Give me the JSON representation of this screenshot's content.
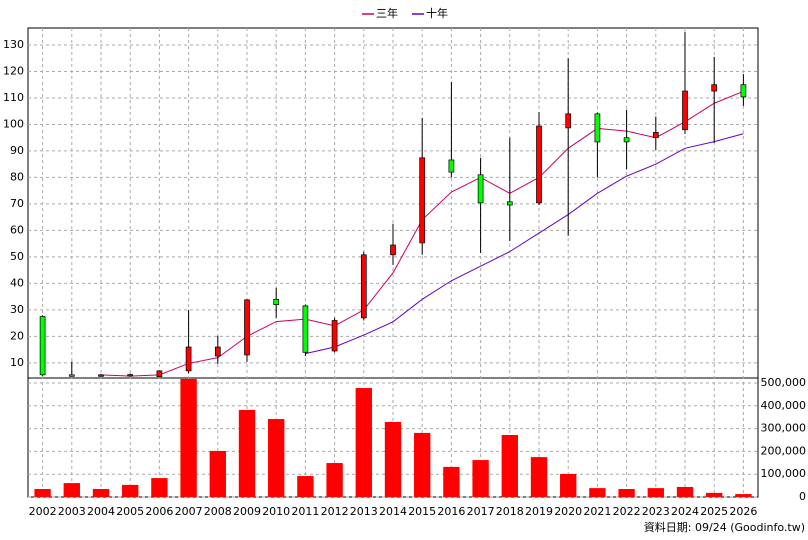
{
  "chart_data": {
    "type": "candlestick",
    "categories": [
      "2002",
      "2003",
      "2004",
      "2005",
      "2006",
      "2007",
      "2008",
      "2009",
      "2010",
      "2011",
      "2012",
      "2013",
      "2014",
      "2015",
      "2016",
      "2017",
      "2018",
      "2019",
      "2020",
      "2021",
      "2022",
      "2023",
      "2024",
      "2025",
      "2026"
    ],
    "open": [
      27.5,
      5.5,
      5,
      5.3,
      4.8,
      7,
      12.6,
      13,
      34,
      31.5,
      14.5,
      27,
      50.8,
      55.3,
      86.6,
      81,
      70.8,
      70.4,
      98.7,
      104,
      95,
      95,
      98,
      112.6,
      115
    ],
    "high": [
      28,
      10.5,
      5.8,
      6,
      7.2,
      30,
      20.2,
      34,
      38.3,
      32,
      27,
      52,
      62.5,
      102.5,
      116,
      87.4,
      95,
      104.7,
      125,
      104.5,
      105.5,
      103,
      135,
      125.5,
      119
    ],
    "low": [
      5,
      5,
      4.8,
      4.8,
      4.6,
      6,
      9.6,
      10.4,
      27,
      12.6,
      14,
      26,
      47,
      50.8,
      80,
      51.5,
      56,
      69.6,
      58,
      80,
      83,
      90.4,
      96.4,
      93,
      107
    ],
    "close": [
      5.5,
      5.2,
      5.5,
      5.6,
      7,
      16,
      16,
      33.8,
      32,
      14,
      26,
      50.8,
      54.5,
      87.4,
      82,
      70.4,
      69.6,
      99.4,
      104,
      93.4,
      93.4,
      97,
      112.6,
      115,
      110.4
    ],
    "up_color": "#ff0000",
    "down_color": "#00ff00",
    "ylim": [
      4.3,
      136.4
    ],
    "yticks": [
      10,
      20,
      30,
      40,
      50,
      60,
      70,
      80,
      90,
      100,
      110,
      120,
      130
    ],
    "grid": true,
    "legend": "top",
    "series": [
      {
        "name": "三年",
        "color": "#cc0066",
        "values": [
          null,
          null,
          5.5,
          5,
          5.5,
          9.8,
          12,
          20,
          25.6,
          26.5,
          24,
          30,
          44,
          64,
          74.5,
          80,
          74,
          80,
          91,
          98.5,
          97.5,
          95,
          101,
          108,
          112.5
        ]
      },
      {
        "name": "十年",
        "color": "#6600cc",
        "values": [
          null,
          null,
          null,
          null,
          null,
          null,
          null,
          null,
          null,
          13.5,
          16,
          20.5,
          25.5,
          34,
          41,
          46.5,
          52,
          59,
          66,
          74,
          80.5,
          85,
          91,
          93.5,
          96.5
        ]
      }
    ],
    "volume": {
      "color": "#ff0000",
      "values": [
        35000,
        61000,
        35000,
        53000,
        83000,
        518000,
        202000,
        382000,
        342000,
        92000,
        149000,
        478000,
        329000,
        281000,
        132000,
        162000,
        272000,
        175000,
        101000,
        39000,
        35000,
        39000,
        44000,
        18000,
        13000
      ],
      "ylim": [
        0,
        522000
      ],
      "yticks": [
        0,
        {
          "value": 100000,
          "label": "100,000"
        },
        {
          "value": 200000,
          "label": "200,000"
        },
        {
          "value": 300000,
          "label": "300,000"
        },
        {
          "value": 400000,
          "label": "400,000"
        },
        {
          "value": 500000,
          "label": "500,000"
        }
      ]
    },
    "footer": "資料日期: 09/24 (Goodinfo.tw)"
  }
}
